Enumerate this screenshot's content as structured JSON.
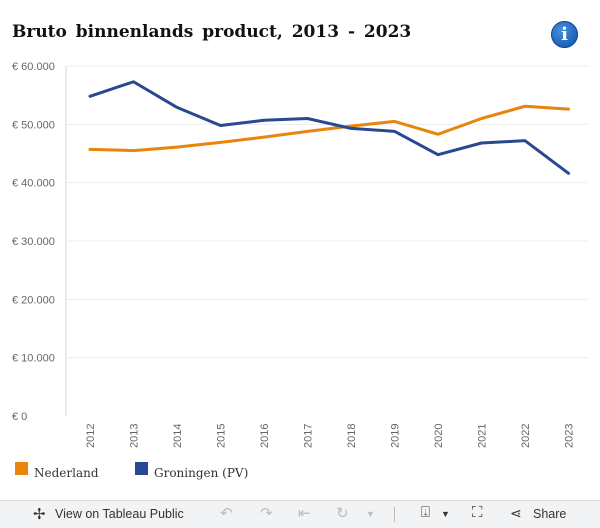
{
  "chart_data": {
    "type": "line",
    "title": "Bruto binnenlands product, 2013 - 2023",
    "x": [
      "2012",
      "2013",
      "2014",
      "2015",
      "2016",
      "2017",
      "2018",
      "2019",
      "2020",
      "2021",
      "2022",
      "2023"
    ],
    "series": [
      {
        "name": "Nederland",
        "color": "#e8850c",
        "values": [
          45700,
          45500,
          46100,
          46900,
          47800,
          48800,
          49700,
          50500,
          48300,
          51000,
          53100,
          52600
        ]
      },
      {
        "name": "Groningen (PV)",
        "color": "#28498f",
        "values": [
          54800,
          57300,
          52900,
          49800,
          50700,
          51000,
          49300,
          48800,
          44800,
          46800,
          47200,
          41600
        ]
      }
    ],
    "y_ticks": [
      "€ 0",
      "€ 10.000",
      "€ 20.000",
      "€ 30.000",
      "€ 40.000",
      "€ 50.000",
      "€ 60.000"
    ],
    "ylim": [
      0,
      60000
    ],
    "grid": true,
    "legend": "bottom-left"
  },
  "info_icon_label": "i",
  "toolbar": {
    "view_label": "View on Tableau Public",
    "share_label": "Share"
  }
}
